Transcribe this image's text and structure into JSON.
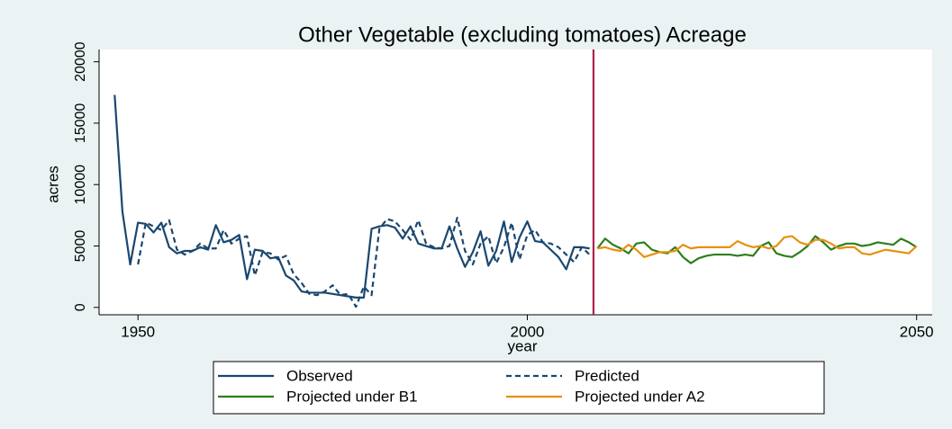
{
  "chart_data": {
    "type": "line",
    "title": "Other Vegetable (excluding tomatoes) Acreage",
    "x_label": "year",
    "y_label": "acres",
    "xlim": [
      1945,
      2052
    ],
    "ylim": [
      -600,
      21000
    ],
    "xticks": [
      1950,
      2000,
      2050
    ],
    "yticks": [
      0,
      5000,
      10000,
      15000,
      20000
    ],
    "vline": {
      "x": 2008.5,
      "color": "#b0224a"
    },
    "series": [
      {
        "name": "Observed",
        "color": "#1a476f",
        "dash": false,
        "x": [
          1947,
          1948,
          1949,
          1950,
          1951,
          1952,
          1953,
          1954,
          1955,
          1956,
          1957,
          1958,
          1959,
          1960,
          1961,
          1962,
          1963,
          1964,
          1965,
          1966,
          1967,
          1968,
          1969,
          1970,
          1971,
          1972,
          1973,
          1974,
          1975,
          1976,
          1977,
          1978,
          1979,
          1980,
          1981,
          1982,
          1983,
          1984,
          1985,
          1986,
          1987,
          1988,
          1989,
          1990,
          1991,
          1992,
          1993,
          1994,
          1995,
          1996,
          1997,
          1998,
          1999,
          2000,
          2001,
          2002,
          2003,
          2004,
          2005,
          2006,
          2007,
          2008
        ],
        "values": [
          17300,
          7800,
          3500,
          6900,
          6800,
          6100,
          6900,
          4900,
          4400,
          4600,
          4600,
          4900,
          4700,
          6700,
          5300,
          5500,
          5900,
          2300,
          4700,
          4600,
          4000,
          4100,
          2600,
          2200,
          1300,
          1200,
          1200,
          1200,
          1100,
          1000,
          900,
          800,
          800,
          6400,
          6600,
          6700,
          6500,
          5600,
          6600,
          5200,
          5000,
          4800,
          4800,
          6600,
          4800,
          3300,
          4500,
          6200,
          3400,
          4600,
          7000,
          3700,
          5700,
          7000,
          5400,
          5300,
          4700,
          4100,
          3100,
          4900,
          4900,
          4800
        ]
      },
      {
        "name": "Predicted",
        "color": "#1a476f",
        "dash": true,
        "x": [
          1950,
          1951,
          1952,
          1953,
          1954,
          1955,
          1956,
          1957,
          1958,
          1959,
          1960,
          1961,
          1962,
          1963,
          1964,
          1965,
          1966,
          1967,
          1968,
          1969,
          1970,
          1971,
          1972,
          1973,
          1974,
          1975,
          1976,
          1977,
          1978,
          1979,
          1980,
          1981,
          1982,
          1983,
          1984,
          1985,
          1986,
          1987,
          1988,
          1989,
          1990,
          1991,
          1992,
          1993,
          1994,
          1995,
          1996,
          1997,
          1998,
          1999,
          2000,
          2001,
          2002,
          2003,
          2004,
          2005,
          2006,
          2007,
          2008
        ],
        "values": [
          3500,
          6900,
          6600,
          6300,
          7100,
          4700,
          4300,
          4600,
          5200,
          4800,
          4800,
          6300,
          5200,
          5600,
          5800,
          2600,
          4500,
          4400,
          3900,
          4200,
          2700,
          2000,
          1100,
          1000,
          1300,
          1800,
          1000,
          1100,
          50,
          1700,
          1000,
          6400,
          7200,
          7000,
          6300,
          5500,
          7100,
          5200,
          4900,
          4800,
          5000,
          7300,
          4600,
          3500,
          5200,
          5800,
          3600,
          4900,
          6900,
          3900,
          5900,
          6300,
          5300,
          5200,
          4900,
          4300,
          3700,
          4900,
          4300
        ]
      },
      {
        "name": "Projected under B1",
        "color": "#2e7d1e",
        "dash": false,
        "x": [
          2009,
          2010,
          2011,
          2012,
          2013,
          2014,
          2015,
          2016,
          2017,
          2018,
          2019,
          2020,
          2021,
          2022,
          2023,
          2024,
          2025,
          2026,
          2027,
          2028,
          2029,
          2030,
          2031,
          2032,
          2033,
          2034,
          2035,
          2036,
          2037,
          2038,
          2039,
          2040,
          2041,
          2042,
          2043,
          2044,
          2045,
          2046,
          2047,
          2048,
          2049,
          2050
        ],
        "values": [
          4800,
          5600,
          5100,
          4800,
          4400,
          5200,
          5300,
          4700,
          4500,
          4400,
          4900,
          4100,
          3600,
          4000,
          4200,
          4300,
          4300,
          4300,
          4200,
          4300,
          4200,
          5000,
          5300,
          4400,
          4200,
          4100,
          4500,
          5000,
          5800,
          5300,
          4700,
          5000,
          5200,
          5200,
          5000,
          5100,
          5300,
          5200,
          5100,
          5600,
          5300,
          4900
        ]
      },
      {
        "name": "Projected under A2",
        "color": "#e8900e",
        "dash": false,
        "x": [
          2009,
          2010,
          2011,
          2012,
          2013,
          2014,
          2015,
          2016,
          2017,
          2018,
          2019,
          2020,
          2021,
          2022,
          2023,
          2024,
          2025,
          2026,
          2027,
          2028,
          2029,
          2030,
          2031,
          2032,
          2033,
          2034,
          2035,
          2036,
          2037,
          2038,
          2039,
          2040,
          2041,
          2042,
          2043,
          2044,
          2045,
          2046,
          2047,
          2048,
          2049,
          2050
        ],
        "values": [
          4800,
          4900,
          4700,
          4600,
          5100,
          4700,
          4100,
          4300,
          4500,
          4500,
          4600,
          5100,
          4800,
          4900,
          4900,
          4900,
          4900,
          4900,
          5400,
          5100,
          4900,
          5000,
          4800,
          5000,
          5700,
          5800,
          5300,
          5100,
          5500,
          5500,
          5200,
          4800,
          4900,
          4900,
          4400,
          4300,
          4500,
          4700,
          4600,
          4500,
          4400,
          5000
        ]
      }
    ]
  }
}
